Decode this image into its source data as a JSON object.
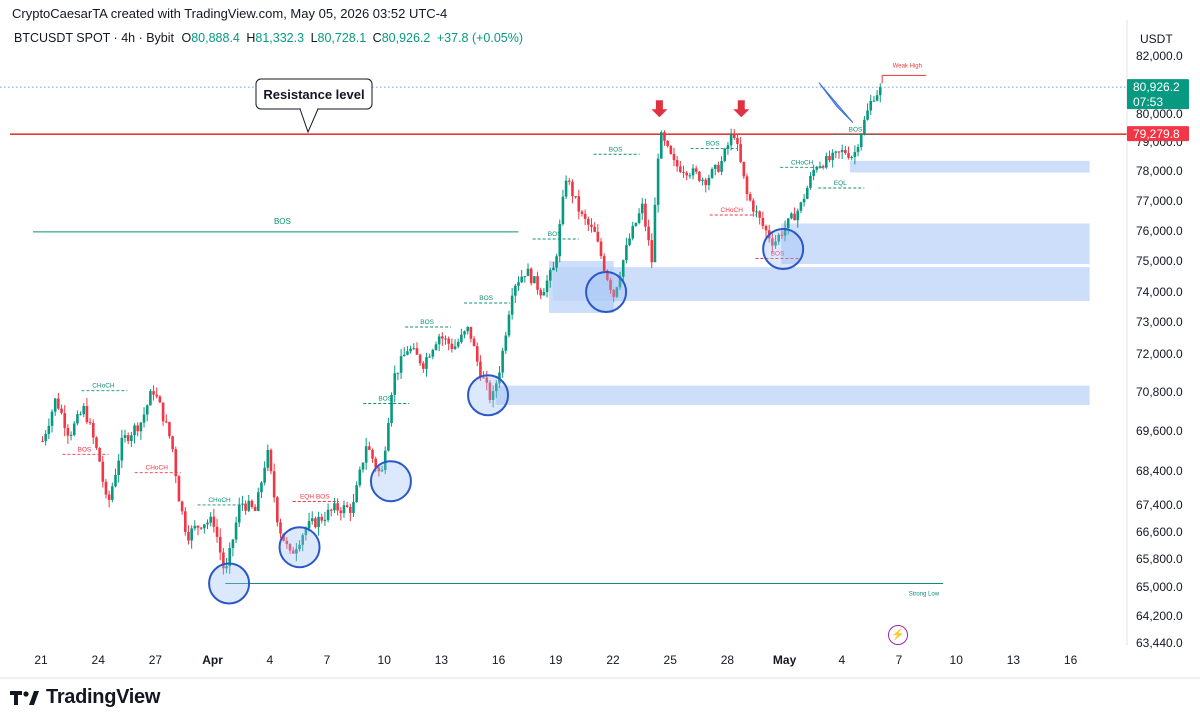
{
  "header": {
    "credit": "CryptoCaesarTA created with TradingView.com, May 05, 2026 03:52 UTC-4",
    "symbol": "BTCUSDT SPOT · 4h · Bybit",
    "open_label": "O",
    "open": "80,888.4",
    "high_label": "H",
    "high": "81,332.3",
    "low_label": "L",
    "low": "80,728.1",
    "close_label": "C",
    "close": "80,926.2",
    "change": "+37.8 (+0.05%)",
    "currency": "USDT"
  },
  "brand": {
    "name": "TradingView",
    "logo_icon": "tradingview-logo-icon"
  },
  "chart_data": {
    "type": "candlestick",
    "symbol": "BTCUSDT",
    "timeframe": "4h",
    "colors": {
      "up": "#089981",
      "down": "#f23645",
      "zone": "#bbd3f8",
      "resistance": "#e53935",
      "structure": "#0c8f76"
    },
    "y_axis": {
      "labels": [
        "82,000.0",
        "81,000.0",
        "80,000.0",
        "79,000.0",
        "78,000.0",
        "77,000.0",
        "76,000.0",
        "75,000.0",
        "74,000.0",
        "73,000.0",
        "72,000.0",
        "70,800.0",
        "69,600.0",
        "68,400.0",
        "67,400.0",
        "66,600.0",
        "65,800.0",
        "65,000.0",
        "64,200.0",
        "63,440.0"
      ],
      "values": [
        82000,
        81000,
        80000,
        79000,
        78000,
        77000,
        76000,
        75000,
        74000,
        73000,
        72000,
        70800,
        69600,
        68400,
        67400,
        66600,
        65800,
        65000,
        64200,
        63440
      ]
    },
    "x_axis": {
      "labels": [
        "21",
        "24",
        "27",
        "Apr",
        "4",
        "7",
        "10",
        "13",
        "16",
        "19",
        "22",
        "25",
        "28",
        "May",
        "4",
        "7",
        "10",
        "13",
        "16"
      ],
      "bold": [
        "Apr",
        "May"
      ]
    },
    "price_tags": [
      {
        "value": 80926.2,
        "text": "80,926.2",
        "sub": "07:53",
        "color": "#089981"
      },
      {
        "value": 79279.8,
        "text": "79,279.8",
        "color": "#f23645"
      }
    ],
    "price_path": [
      {
        "d": 0,
        "p": 69300
      },
      {
        "d": 0.7,
        "p": 70600
      },
      {
        "d": 1.4,
        "p": 69500
      },
      {
        "d": 2.2,
        "p": 70300
      },
      {
        "d": 3,
        "p": 68700
      },
      {
        "d": 3.4,
        "p": 67300
      },
      {
        "d": 4.2,
        "p": 69300
      },
      {
        "d": 5.2,
        "p": 69900
      },
      {
        "d": 5.8,
        "p": 70900
      },
      {
        "d": 6.2,
        "p": 70300
      },
      {
        "d": 6.8,
        "p": 69200
      },
      {
        "d": 7.2,
        "p": 67500
      },
      {
        "d": 7.6,
        "p": 66500
      },
      {
        "d": 8.4,
        "p": 66900
      },
      {
        "d": 9,
        "p": 66900
      },
      {
        "d": 9.6,
        "p": 65300
      },
      {
        "d": 10.4,
        "p": 67500
      },
      {
        "d": 11.2,
        "p": 67200
      },
      {
        "d": 11.8,
        "p": 69000
      },
      {
        "d": 12.4,
        "p": 66800
      },
      {
        "d": 13,
        "p": 65900
      },
      {
        "d": 13.8,
        "p": 66700
      },
      {
        "d": 14.6,
        "p": 67000
      },
      {
        "d": 15.4,
        "p": 67300
      },
      {
        "d": 16.3,
        "p": 67300
      },
      {
        "d": 17,
        "p": 69200
      },
      {
        "d": 17.8,
        "p": 68200
      },
      {
        "d": 18.4,
        "p": 71200
      },
      {
        "d": 19.2,
        "p": 72200
      },
      {
        "d": 20,
        "p": 71700
      },
      {
        "d": 20.8,
        "p": 72600
      },
      {
        "d": 21.6,
        "p": 72200
      },
      {
        "d": 22.4,
        "p": 72800
      },
      {
        "d": 22.9,
        "p": 71600
      },
      {
        "d": 23.6,
        "p": 70500
      },
      {
        "d": 24.1,
        "p": 71800
      },
      {
        "d": 24.7,
        "p": 74200
      },
      {
        "d": 25.4,
        "p": 74700
      },
      {
        "d": 26.2,
        "p": 74000
      },
      {
        "d": 26.9,
        "p": 74800
      },
      {
        "d": 27.5,
        "p": 77800
      },
      {
        "d": 28.3,
        "p": 76500
      },
      {
        "d": 29,
        "p": 75900
      },
      {
        "d": 29.6,
        "p": 74600
      },
      {
        "d": 30,
        "p": 73900
      },
      {
        "d": 30.8,
        "p": 75700
      },
      {
        "d": 31.5,
        "p": 76800
      },
      {
        "d": 32,
        "p": 75000
      },
      {
        "d": 32.4,
        "p": 79300
      },
      {
        "d": 33.2,
        "p": 78200
      },
      {
        "d": 34,
        "p": 78000
      },
      {
        "d": 34.8,
        "p": 77700
      },
      {
        "d": 35.6,
        "p": 78200
      },
      {
        "d": 36.3,
        "p": 79400
      },
      {
        "d": 37,
        "p": 77200
      },
      {
        "d": 37.8,
        "p": 76200
      },
      {
        "d": 38.4,
        "p": 75600
      },
      {
        "d": 39.1,
        "p": 76200
      },
      {
        "d": 39.8,
        "p": 76800
      },
      {
        "d": 40.6,
        "p": 78200
      },
      {
        "d": 41.4,
        "p": 78400
      },
      {
        "d": 42.1,
        "p": 78700
      },
      {
        "d": 42.6,
        "p": 78500
      },
      {
        "d": 43.1,
        "p": 79600
      },
      {
        "d": 43.6,
        "p": 80600
      },
      {
        "d": 44.1,
        "p": 80900
      }
    ],
    "resistance": {
      "value": 79279.8,
      "label": "Resistance level"
    },
    "zones": [
      {
        "top": 78350,
        "bottom": 77950,
        "from_d": 42.4,
        "to_d": 55
      },
      {
        "top": 76250,
        "bottom": 74900,
        "from_d": 38.8,
        "to_d": 55
      },
      {
        "top": 74800,
        "bottom": 73700,
        "from_d": 26.8,
        "to_d": 55
      },
      {
        "top": 75000,
        "bottom": 73300,
        "from_d": 26.6,
        "to_d": 30
      },
      {
        "top": 71000,
        "bottom": 70400,
        "from_d": 23.8,
        "to_d": 55
      }
    ],
    "levels": [
      {
        "type": "BOS",
        "value": 75970,
        "from_d": -0.5,
        "to_d": 25,
        "label": "BOS",
        "label_d": 12.6,
        "solid": true
      },
      {
        "type": "weak-high",
        "value": 81330,
        "from_d": 44.1,
        "to_d": 46.4,
        "label": "Weak High",
        "color": "#e53935"
      },
      {
        "type": "strong-low",
        "value": 65100,
        "from_d": 9.6,
        "to_d": 47.3,
        "label": "Strong Low"
      }
    ],
    "annotations": [
      {
        "text": "CHoCH",
        "d": 3.2,
        "p": 71000,
        "color": "#0c8f76"
      },
      {
        "text": "BOS",
        "d": 2.2,
        "p": 69050,
        "color": "#f23645"
      },
      {
        "text": "CHoCH",
        "d": 6,
        "p": 68500,
        "color": "#f23645"
      },
      {
        "text": "CHoCH",
        "d": 9.3,
        "p": 67550,
        "color": "#0c8f76"
      },
      {
        "text": "EQH BOS",
        "d": 14.3,
        "p": 67650,
        "color": "#f23645"
      },
      {
        "text": "BOS",
        "d": 18,
        "p": 70600,
        "color": "#0c8f76"
      },
      {
        "text": "BOS",
        "d": 20.2,
        "p": 73000,
        "color": "#0c8f76"
      },
      {
        "text": "BOS",
        "d": 23.3,
        "p": 73800,
        "color": "#0c8f76"
      },
      {
        "text": "BOS",
        "d": 26.9,
        "p": 75900,
        "color": "#0c8f76"
      },
      {
        "text": "BOS",
        "d": 30.1,
        "p": 78750,
        "color": "#0c8f76"
      },
      {
        "text": "BOS",
        "d": 35.2,
        "p": 78950,
        "color": "#0c8f76"
      },
      {
        "text": "CHoCH",
        "d": 36.2,
        "p": 76700,
        "color": "#f23645"
      },
      {
        "text": "BOS",
        "d": 38.6,
        "p": 75250,
        "color": "#f23645"
      },
      {
        "text": "CHoCH",
        "d": 39.9,
        "p": 78300,
        "color": "#0c8f76"
      },
      {
        "text": "EQL",
        "d": 41.9,
        "p": 77600,
        "color": "#0c8f76"
      },
      {
        "text": "BOS",
        "d": 42.7,
        "p": 79450,
        "color": "#0c8f76"
      }
    ],
    "markers": {
      "circles": [
        {
          "d": 9.8,
          "p": 65100
        },
        {
          "d": 13.5,
          "p": 66150
        },
        {
          "d": 18.3,
          "p": 68100
        },
        {
          "d": 23.4,
          "p": 70700
        },
        {
          "d": 29.6,
          "p": 74000
        },
        {
          "d": 38.9,
          "p": 75400
        }
      ],
      "down_arrows": [
        {
          "d": 32.4,
          "p": 79600
        },
        {
          "d": 36.7,
          "p": 79600
        }
      ],
      "up_pointer": {
        "d": 42.3,
        "p": 80600
      }
    }
  }
}
